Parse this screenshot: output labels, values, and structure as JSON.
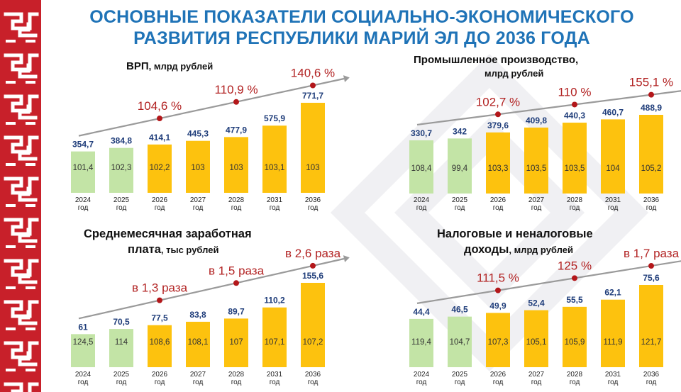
{
  "title_lines": [
    "ОСНОВНЫЕ ПОКАЗАТЕЛИ СОЦИАЛЬНО-ЭКОНОМИЧЕСКОГО",
    "РАЗВИТИЯ РЕСПУБЛИКИ МАРИЙ ЭЛ ДО 2036 ГОДА"
  ],
  "colors": {
    "title": "#1f73b7",
    "ornament": "#c8202a",
    "bar_green": "#c3e4a6",
    "bar_yellow": "#fdc20e",
    "value_top": "#1f3d7a",
    "growth_text": "#b22222",
    "growth_dot": "#b3171a",
    "arrow": "#9a9a9a"
  },
  "chart_data": [
    {
      "type": "bar",
      "title": "ВРП",
      "unit": ", млрд рублей",
      "categories": [
        [
          "2024",
          "год"
        ],
        [
          "2025",
          "год"
        ],
        [
          "2026",
          "год"
        ],
        [
          "2027",
          "год"
        ],
        [
          "2028",
          "год"
        ],
        [
          "2031",
          "год"
        ],
        [
          "2036",
          "год"
        ]
      ],
      "values": [
        354.7,
        384.8,
        414.1,
        445.3,
        477.9,
        575.9,
        771.7
      ],
      "value_labels": [
        "354,7",
        "384,8",
        "414,1",
        "445,3",
        "477,9",
        "575,9",
        "771,7"
      ],
      "index_labels": [
        "101,4",
        "102,3",
        "102,2",
        "103",
        "103",
        "103,1",
        "103"
      ],
      "bar_colors": [
        "green",
        "green",
        "yellow",
        "yellow",
        "yellow",
        "yellow",
        "yellow"
      ],
      "growth_labels": [
        {
          "after_category": "2026",
          "text": "104,6 %"
        },
        {
          "after_category": "2028",
          "text": "110,9 %"
        },
        {
          "after_category": "2036",
          "text": "140,6 %"
        }
      ]
    },
    {
      "type": "bar",
      "title": "Промышленное производство,",
      "unit": "млрд рублей",
      "categories": [
        [
          "2024",
          "год"
        ],
        [
          "2025",
          "год"
        ],
        [
          "2026",
          "год"
        ],
        [
          "2027",
          "год"
        ],
        [
          "2028",
          "год"
        ],
        [
          "2031",
          "год"
        ],
        [
          "2036",
          "год"
        ]
      ],
      "values": [
        330.7,
        342,
        379.6,
        409.8,
        440.3,
        460.7,
        488.9
      ],
      "value_labels": [
        "330,7",
        "342",
        "379,6",
        "409,8",
        "440,3",
        "460,7",
        "488,9"
      ],
      "index_labels": [
        "108,4",
        "99,4",
        "103,3",
        "103,5",
        "103,5",
        "104",
        "105,2"
      ],
      "bar_colors": [
        "green",
        "green",
        "yellow",
        "yellow",
        "yellow",
        "yellow",
        "yellow"
      ],
      "growth_labels": [
        {
          "after_category": "2026",
          "text": "102,7 %"
        },
        {
          "after_category": "2028",
          "text": "110 %"
        },
        {
          "after_category": "2036",
          "text": "155,1 %"
        }
      ]
    },
    {
      "type": "bar",
      "title": "Среднемесячная заработная",
      "title_line2": "плата",
      "unit": ", тыс рублей",
      "categories": [
        [
          "2024",
          "год"
        ],
        [
          "2025",
          "год"
        ],
        [
          "2026",
          "год"
        ],
        [
          "2027",
          "год"
        ],
        [
          "2028",
          "год"
        ],
        [
          "2031",
          "год"
        ],
        [
          "2036",
          "год"
        ]
      ],
      "values": [
        61,
        70.5,
        77.5,
        83.8,
        89.7,
        110.2,
        155.6
      ],
      "value_labels": [
        "61",
        "70,5",
        "77,5",
        "83,8",
        "89,7",
        "110,2",
        "155,6"
      ],
      "index_labels": [
        "124,5",
        "114",
        "108,6",
        "108,1",
        "107",
        "107,1",
        "107,2"
      ],
      "bar_colors": [
        "green",
        "green",
        "yellow",
        "yellow",
        "yellow",
        "yellow",
        "yellow"
      ],
      "growth_labels": [
        {
          "after_category": "2026",
          "text": "в 1,3 раза"
        },
        {
          "after_category": "2028",
          "text": "в 1,5 раза"
        },
        {
          "after_category": "2036",
          "text": "в 2,6 раза"
        }
      ]
    },
    {
      "type": "bar",
      "title": "Налоговые и неналоговые",
      "title_line2": "доходы",
      "unit": ", млрд рублей",
      "categories": [
        [
          "2024",
          "год"
        ],
        [
          "2025",
          "год"
        ],
        [
          "2026",
          "год"
        ],
        [
          "2027",
          "год"
        ],
        [
          "2028",
          "год"
        ],
        [
          "2031",
          "год"
        ],
        [
          "2036",
          "год"
        ]
      ],
      "values": [
        44.4,
        46.5,
        49.9,
        52.4,
        55.5,
        62.1,
        75.6
      ],
      "value_labels": [
        "44,4",
        "46,5",
        "49,9",
        "52,4",
        "55,5",
        "62,1",
        "75,6"
      ],
      "index_labels": [
        "119,4",
        "104,7",
        "107,3",
        "105,1",
        "105,9",
        "111,9",
        "121,7"
      ],
      "bar_colors": [
        "green",
        "green",
        "yellow",
        "yellow",
        "yellow",
        "yellow",
        "yellow"
      ],
      "growth_labels": [
        {
          "after_category": "2026",
          "text": "111,5 %"
        },
        {
          "after_category": "2028",
          "text": "125 %"
        },
        {
          "after_category": "2036",
          "text": "в 1,7 раза"
        }
      ]
    }
  ]
}
